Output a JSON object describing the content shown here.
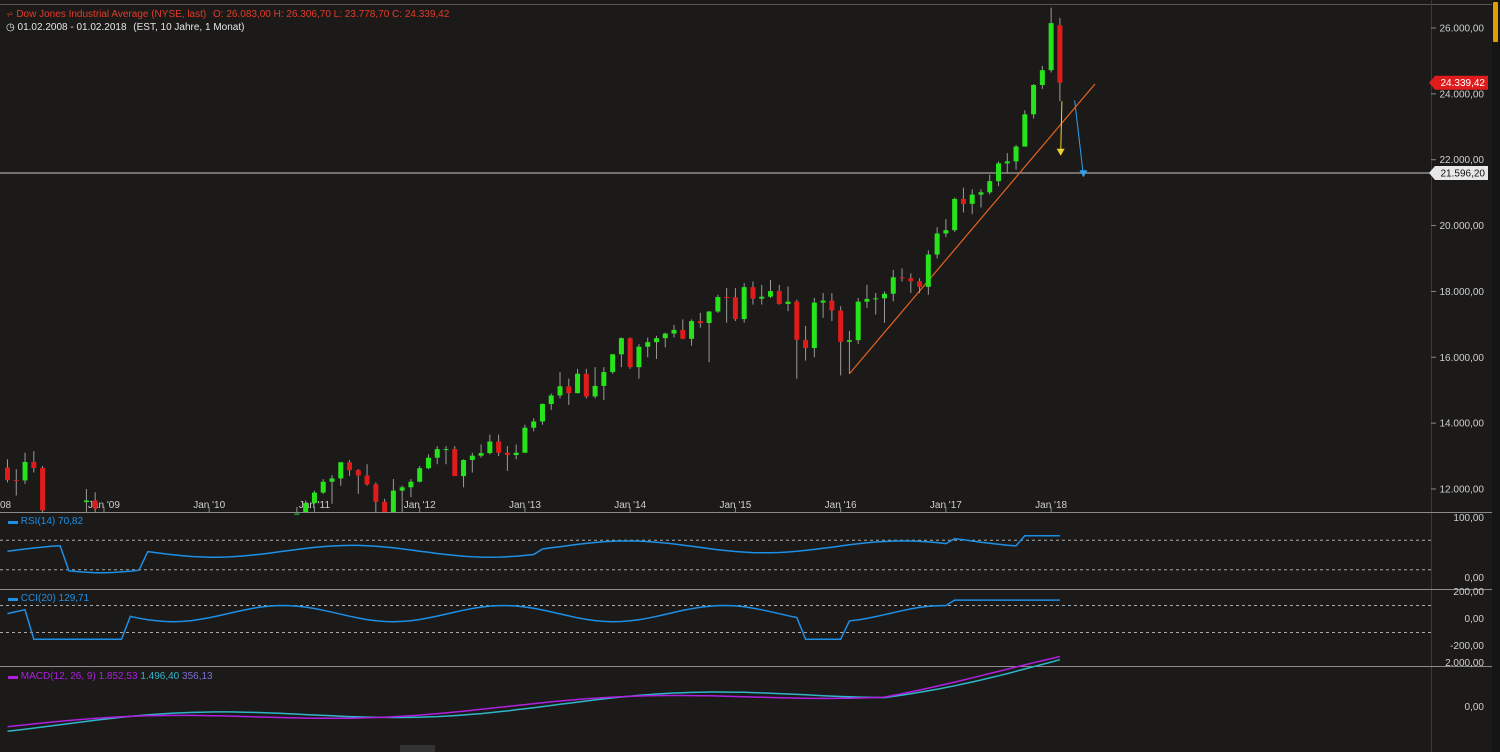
{
  "header": {
    "title": "Dow Jones Industrial Average (NYSE, last)",
    "ohlc": "O: 26.083,00  H: 26.306,70  L: 23.778,70  C: 24.339,42",
    "range": "01.02.2008 - 01.02.2018",
    "meta": "(EST, 10 Jahre, 1 Monat)"
  },
  "price_labels": {
    "last": "24.339,42",
    "hline": "21.596,20"
  },
  "colors": {
    "up": "#27e31b",
    "down": "#e01b1b",
    "bg": "#1b1a19",
    "accent": "#e01b1b",
    "rsi": "#1e8fe6",
    "macd": "#b020e0",
    "signal": "#2fb5c8",
    "trend": "#e8621e"
  },
  "indicators": {
    "rsi": {
      "label": "RSI(14)",
      "value": "70,82",
      "ticks": [
        "100,00",
        "0,00"
      ]
    },
    "cci": {
      "label": "CCI(20)",
      "value": "129,71",
      "ticks": [
        "200,00",
        "0,00",
        "-200,00"
      ]
    },
    "macd": {
      "label": "MACD(12, 26, 9)",
      "v1": "1.852,53",
      "v2": "1.496,40",
      "v3": "356,13",
      "ticks": [
        "2.000,00",
        "0,00"
      ]
    }
  },
  "chart_data": {
    "type": "candlestick",
    "x_ticks": [
      "08",
      "Jan '09",
      "Jan '10",
      "Jan '11",
      "Jan '12",
      "Jan '13",
      "Jan '14",
      "Jan '15",
      "Jan '16",
      "Jan '17",
      "Jan '18"
    ],
    "y_ticks": [
      12000,
      14000,
      16000,
      18000,
      20000,
      22000,
      24000,
      26000
    ],
    "y_tick_labels": [
      "12.000,00",
      "14.000,00",
      "16.000,00",
      "18.000,00",
      "20.000,00",
      "22.000,00",
      "24.000,00",
      "26.000,00"
    ],
    "ylim": [
      11300,
      26700
    ],
    "horizontal_line": 21596.2,
    "trendline": {
      "start": [
        "2016-02",
        15500
      ],
      "end": [
        "2018-06",
        24300
      ]
    },
    "arrows": [
      {
        "color": "#f0d030",
        "from": [
          "2018-02",
          23778
        ],
        "to": [
          "2018-03",
          22150
        ]
      },
      {
        "color": "#30a0f0",
        "from": [
          "2018-03",
          23800
        ],
        "to": [
          "2018-04",
          21500
        ]
      }
    ],
    "candles": [
      {
        "d": "2008-02",
        "o": 12650,
        "h": 12900,
        "l": 12200,
        "c": 12270
      },
      {
        "d": "2008-03",
        "o": 12270,
        "h": 12600,
        "l": 11800,
        "c": 12260
      },
      {
        "d": "2008-04",
        "o": 12260,
        "h": 13100,
        "l": 12150,
        "c": 12820
      },
      {
        "d": "2008-05",
        "o": 12820,
        "h": 13150,
        "l": 12500,
        "c": 12640
      },
      {
        "d": "2008-06",
        "o": 12640,
        "h": 12700,
        "l": 11300,
        "c": 11350
      },
      {
        "d": "2008-11",
        "o": 11600,
        "h": 12000,
        "l": 11300,
        "c": 11650
      },
      {
        "d": "2008-12",
        "o": 11650,
        "h": 11900,
        "l": 11300,
        "c": 11400
      },
      {
        "d": "2010-11",
        "o": 11100,
        "h": 11450,
        "l": 10900,
        "c": 11250
      },
      {
        "d": "2010-12",
        "o": 11250,
        "h": 11650,
        "l": 11200,
        "c": 11570
      },
      {
        "d": "2011-01",
        "o": 11570,
        "h": 11950,
        "l": 11550,
        "c": 11890
      },
      {
        "d": "2011-02",
        "o": 11890,
        "h": 12300,
        "l": 11850,
        "c": 12220
      },
      {
        "d": "2011-03",
        "o": 12220,
        "h": 12420,
        "l": 11550,
        "c": 12320
      },
      {
        "d": "2011-04",
        "o": 12320,
        "h": 12820,
        "l": 12100,
        "c": 12810
      },
      {
        "d": "2011-05",
        "o": 12810,
        "h": 12880,
        "l": 12400,
        "c": 12570
      },
      {
        "d": "2011-06",
        "o": 12570,
        "h": 12600,
        "l": 11850,
        "c": 12410
      },
      {
        "d": "2011-07",
        "o": 12410,
        "h": 12750,
        "l": 12100,
        "c": 12140
      },
      {
        "d": "2011-08",
        "o": 12140,
        "h": 12200,
        "l": 10600,
        "c": 11610
      },
      {
        "d": "2011-09",
        "o": 11610,
        "h": 11700,
        "l": 10600,
        "c": 10910
      },
      {
        "d": "2011-10",
        "o": 10910,
        "h": 12300,
        "l": 10400,
        "c": 11950
      },
      {
        "d": "2011-11",
        "o": 11950,
        "h": 12100,
        "l": 11200,
        "c": 12050
      },
      {
        "d": "2011-12",
        "o": 12050,
        "h": 12300,
        "l": 11750,
        "c": 12220
      },
      {
        "d": "2012-01",
        "o": 12220,
        "h": 12700,
        "l": 12200,
        "c": 12630
      },
      {
        "d": "2012-02",
        "o": 12630,
        "h": 13050,
        "l": 12600,
        "c": 12950
      },
      {
        "d": "2012-03",
        "o": 12950,
        "h": 13300,
        "l": 12750,
        "c": 13210
      },
      {
        "d": "2012-04",
        "o": 13210,
        "h": 13300,
        "l": 12750,
        "c": 13210
      },
      {
        "d": "2012-05",
        "o": 13210,
        "h": 13300,
        "l": 12400,
        "c": 12390
      },
      {
        "d": "2012-06",
        "o": 12390,
        "h": 12900,
        "l": 12050,
        "c": 12880
      },
      {
        "d": "2012-07",
        "o": 12880,
        "h": 13100,
        "l": 12500,
        "c": 13010
      },
      {
        "d": "2012-08",
        "o": 13010,
        "h": 13350,
        "l": 12950,
        "c": 13090
      },
      {
        "d": "2012-09",
        "o": 13090,
        "h": 13650,
        "l": 13050,
        "c": 13440
      },
      {
        "d": "2012-10",
        "o": 13440,
        "h": 13650,
        "l": 13000,
        "c": 13100
      },
      {
        "d": "2012-11",
        "o": 13100,
        "h": 13300,
        "l": 12550,
        "c": 13030
      },
      {
        "d": "2012-12",
        "o": 13030,
        "h": 13350,
        "l": 12900,
        "c": 13100
      },
      {
        "d": "2013-01",
        "o": 13100,
        "h": 13950,
        "l": 13100,
        "c": 13860
      },
      {
        "d": "2013-02",
        "o": 13860,
        "h": 14150,
        "l": 13750,
        "c": 14050
      },
      {
        "d": "2013-03",
        "o": 14050,
        "h": 14600,
        "l": 13950,
        "c": 14580
      },
      {
        "d": "2013-04",
        "o": 14580,
        "h": 14900,
        "l": 14400,
        "c": 14840
      },
      {
        "d": "2013-05",
        "o": 14840,
        "h": 15550,
        "l": 14750,
        "c": 15120
      },
      {
        "d": "2013-06",
        "o": 15120,
        "h": 15350,
        "l": 14550,
        "c": 14910
      },
      {
        "d": "2013-07",
        "o": 14910,
        "h": 15650,
        "l": 14900,
        "c": 15500
      },
      {
        "d": "2013-08",
        "o": 15500,
        "h": 15650,
        "l": 14750,
        "c": 14810
      },
      {
        "d": "2013-09",
        "o": 14810,
        "h": 15700,
        "l": 14750,
        "c": 15130
      },
      {
        "d": "2013-10",
        "o": 15130,
        "h": 15700,
        "l": 14700,
        "c": 15550
      },
      {
        "d": "2013-11",
        "o": 15550,
        "h": 16100,
        "l": 15500,
        "c": 16090
      },
      {
        "d": "2013-12",
        "o": 16090,
        "h": 16600,
        "l": 15700,
        "c": 16580
      },
      {
        "d": "2014-01",
        "o": 16580,
        "h": 16600,
        "l": 15650,
        "c": 15700
      },
      {
        "d": "2014-02",
        "o": 15700,
        "h": 16400,
        "l": 15350,
        "c": 16320
      },
      {
        "d": "2014-03",
        "o": 16320,
        "h": 16600,
        "l": 16000,
        "c": 16460
      },
      {
        "d": "2014-04",
        "o": 16460,
        "h": 16650,
        "l": 15950,
        "c": 16580
      },
      {
        "d": "2014-05",
        "o": 16580,
        "h": 16750,
        "l": 16300,
        "c": 16720
      },
      {
        "d": "2014-06",
        "o": 16720,
        "h": 16980,
        "l": 16600,
        "c": 16830
      },
      {
        "d": "2014-07",
        "o": 16830,
        "h": 17150,
        "l": 16550,
        "c": 16560
      },
      {
        "d": "2014-08",
        "o": 16560,
        "h": 17150,
        "l": 16350,
        "c": 17100
      },
      {
        "d": "2014-09",
        "o": 17100,
        "h": 17350,
        "l": 16900,
        "c": 17040
      },
      {
        "d": "2014-10",
        "o": 17040,
        "h": 17400,
        "l": 15850,
        "c": 17390
      },
      {
        "d": "2014-11",
        "o": 17390,
        "h": 17900,
        "l": 17350,
        "c": 17830
      },
      {
        "d": "2014-12",
        "o": 17830,
        "h": 18100,
        "l": 17050,
        "c": 17820
      },
      {
        "d": "2015-01",
        "o": 17820,
        "h": 18100,
        "l": 17100,
        "c": 17160
      },
      {
        "d": "2015-02",
        "o": 17160,
        "h": 18250,
        "l": 17050,
        "c": 18130
      },
      {
        "d": "2015-03",
        "o": 18130,
        "h": 18300,
        "l": 17600,
        "c": 17780
      },
      {
        "d": "2015-04",
        "o": 17780,
        "h": 18200,
        "l": 17600,
        "c": 17840
      },
      {
        "d": "2015-05",
        "o": 17840,
        "h": 18350,
        "l": 17800,
        "c": 18010
      },
      {
        "d": "2015-06",
        "o": 18010,
        "h": 18200,
        "l": 17600,
        "c": 17620
      },
      {
        "d": "2015-07",
        "o": 17620,
        "h": 18150,
        "l": 17400,
        "c": 17690
      },
      {
        "d": "2015-08",
        "o": 17690,
        "h": 17750,
        "l": 15350,
        "c": 16530
      },
      {
        "d": "2015-09",
        "o": 16530,
        "h": 16950,
        "l": 15900,
        "c": 16280
      },
      {
        "d": "2015-10",
        "o": 16280,
        "h": 17800,
        "l": 16000,
        "c": 17660
      },
      {
        "d": "2015-11",
        "o": 17660,
        "h": 17950,
        "l": 17200,
        "c": 17720
      },
      {
        "d": "2015-12",
        "o": 17720,
        "h": 17950,
        "l": 17100,
        "c": 17420
      },
      {
        "d": "2016-01",
        "o": 17420,
        "h": 17550,
        "l": 15450,
        "c": 16470
      },
      {
        "d": "2016-02",
        "o": 16470,
        "h": 16800,
        "l": 15500,
        "c": 16520
      },
      {
        "d": "2016-03",
        "o": 16520,
        "h": 17800,
        "l": 16400,
        "c": 17690
      },
      {
        "d": "2016-04",
        "o": 17690,
        "h": 18200,
        "l": 17500,
        "c": 17770
      },
      {
        "d": "2016-05",
        "o": 17770,
        "h": 17950,
        "l": 17300,
        "c": 17790
      },
      {
        "d": "2016-06",
        "o": 17790,
        "h": 18000,
        "l": 17050,
        "c": 17930
      },
      {
        "d": "2016-07",
        "o": 17930,
        "h": 18650,
        "l": 17700,
        "c": 18430
      },
      {
        "d": "2016-08",
        "o": 18430,
        "h": 18700,
        "l": 18300,
        "c": 18400
      },
      {
        "d": "2016-09",
        "o": 18400,
        "h": 18550,
        "l": 17950,
        "c": 18310
      },
      {
        "d": "2016-10",
        "o": 18310,
        "h": 18400,
        "l": 17950,
        "c": 18140
      },
      {
        "d": "2016-11",
        "o": 18140,
        "h": 19250,
        "l": 17900,
        "c": 19120
      },
      {
        "d": "2016-12",
        "o": 19120,
        "h": 19950,
        "l": 19000,
        "c": 19760
      },
      {
        "d": "2017-01",
        "o": 19760,
        "h": 20200,
        "l": 19650,
        "c": 19860
      },
      {
        "d": "2017-02",
        "o": 19860,
        "h": 20850,
        "l": 19800,
        "c": 20810
      },
      {
        "d": "2017-03",
        "o": 20810,
        "h": 21150,
        "l": 20400,
        "c": 20660
      },
      {
        "d": "2017-04",
        "o": 20660,
        "h": 21100,
        "l": 20350,
        "c": 20940
      },
      {
        "d": "2017-05",
        "o": 20940,
        "h": 21100,
        "l": 20550,
        "c": 21010
      },
      {
        "d": "2017-06",
        "o": 21010,
        "h": 21550,
        "l": 20950,
        "c": 21350
      },
      {
        "d": "2017-07",
        "o": 21350,
        "h": 21950,
        "l": 21200,
        "c": 21890
      },
      {
        "d": "2017-08",
        "o": 21890,
        "h": 22200,
        "l": 21600,
        "c": 21950
      },
      {
        "d": "2017-09",
        "o": 21950,
        "h": 22450,
        "l": 21700,
        "c": 22400
      },
      {
        "d": "2017-10",
        "o": 22400,
        "h": 23500,
        "l": 22400,
        "c": 23380
      },
      {
        "d": "2017-11",
        "o": 23380,
        "h": 24300,
        "l": 23250,
        "c": 24270
      },
      {
        "d": "2017-12",
        "o": 24270,
        "h": 24850,
        "l": 24150,
        "c": 24720
      },
      {
        "d": "2018-01",
        "o": 24720,
        "h": 26620,
        "l": 24650,
        "c": 26150
      },
      {
        "d": "2018-02",
        "o": 26083,
        "h": 26306.7,
        "l": 23778.7,
        "c": 24339.42
      }
    ]
  }
}
